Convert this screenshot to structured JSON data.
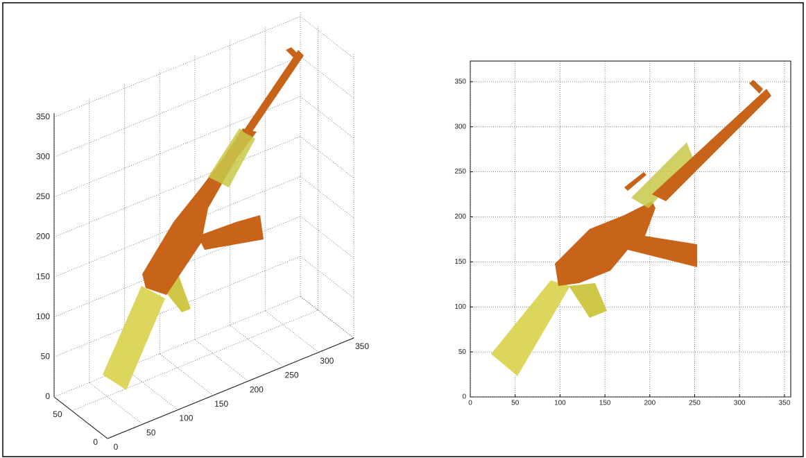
{
  "chart_data": [
    {
      "type": "surface3d",
      "xlim": [
        0,
        350
      ],
      "ylim": [
        0,
        75
      ],
      "zlim": [
        0,
        355
      ],
      "xticks": [
        0,
        50,
        100,
        150,
        200,
        250,
        300,
        350
      ],
      "yticks": [
        0,
        50
      ],
      "zticks": [
        0,
        50,
        100,
        150,
        200,
        250,
        300,
        350
      ],
      "grid": true
    },
    {
      "type": "surface",
      "xlim": [
        0,
        357
      ],
      "ylim": [
        0,
        373
      ],
      "xticks": [
        0,
        50,
        100,
        150,
        200,
        250,
        300,
        350
      ],
      "yticks": [
        0,
        50,
        100,
        150,
        200,
        250,
        300,
        350
      ],
      "grid": true
    }
  ]
}
